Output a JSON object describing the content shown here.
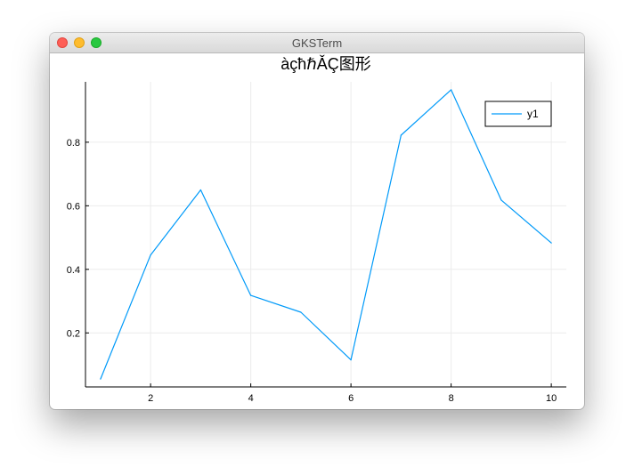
{
  "window": {
    "title": "GKSTerm"
  },
  "chart_data": {
    "type": "line",
    "title": "àçħℏǍÇ图形",
    "xlabel": "",
    "ylabel": "",
    "xlim": [
      0.7,
      10.3
    ],
    "ylim": [
      0.03,
      0.99
    ],
    "xticks": [
      2,
      4,
      6,
      8,
      10
    ],
    "yticks": [
      0.2,
      0.4,
      0.6,
      0.8
    ],
    "xtick_labels": [
      "2",
      "4",
      "6",
      "8",
      "10"
    ],
    "ytick_labels": [
      "0.2",
      "0.4",
      "0.6",
      "0.8"
    ],
    "grid": true,
    "legend_position": "top-right",
    "series": [
      {
        "name": "y1",
        "color": "#009af9",
        "x": [
          1,
          2,
          3,
          4,
          5,
          6,
          7,
          8,
          9,
          10
        ],
        "y": [
          0.055,
          0.445,
          0.65,
          0.318,
          0.265,
          0.115,
          0.822,
          0.965,
          0.618,
          0.483
        ]
      }
    ]
  }
}
